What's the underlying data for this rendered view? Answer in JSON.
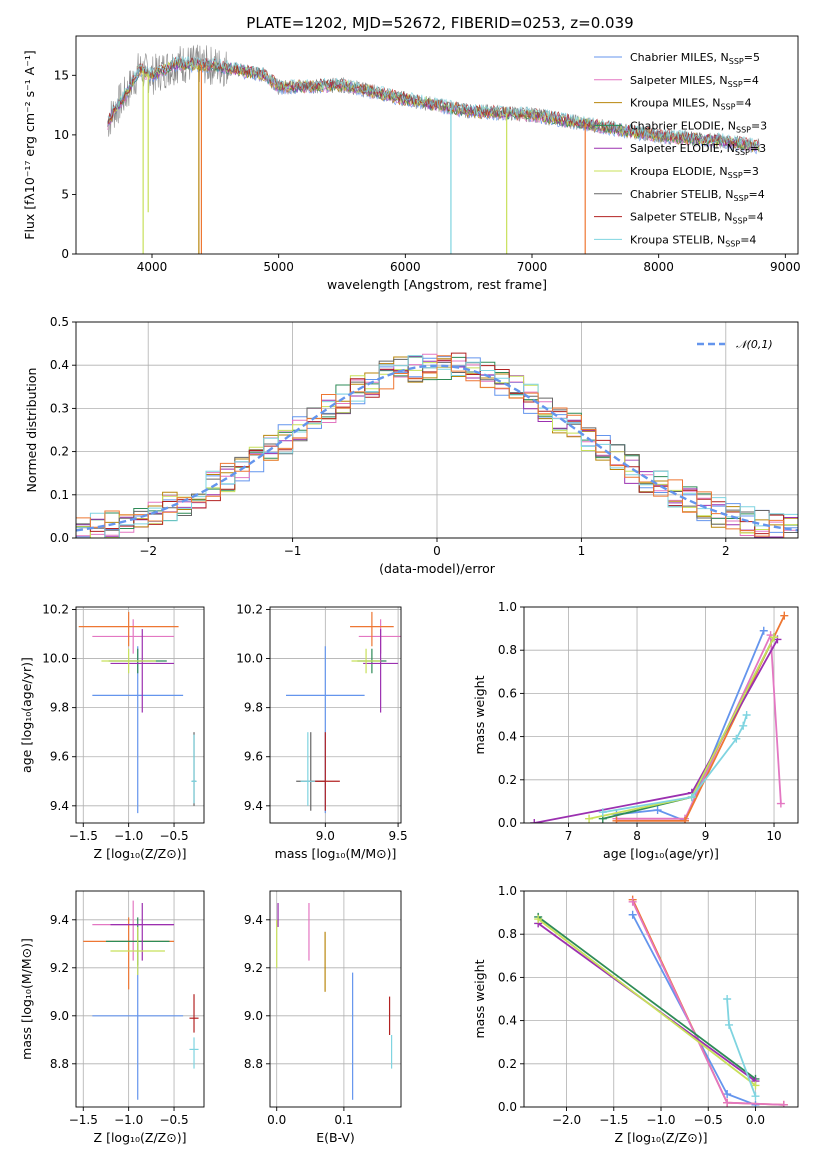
{
  "figure": {
    "title": "PLATE=1202, MJD=52672, FIBERID=0253, z=0.039"
  },
  "colors": {
    "blue": "#6495ed",
    "pink": "#e377c2",
    "brown": "#b8860b",
    "green": "#2e8b57",
    "purple": "#9b30b0",
    "yellowgreen": "#c8e05a",
    "gray": "#666666",
    "red": "#b22222",
    "cyan": "#7fd4e0",
    "orange": "#ee7733",
    "olive": "#8fb82a"
  },
  "chart_data": [
    {
      "id": "spectrum",
      "type": "line",
      "title": "PLATE=1202, MJD=52672, FIBERID=0253, z=0.039",
      "xlabel": "wavelength [Angstrom, rest frame]",
      "ylabel": "Flux [fλ10⁻¹⁷ erg cm⁻² s⁻¹ A⁻¹]",
      "xlim": [
        3400,
        9100
      ],
      "ylim": [
        0,
        18.3
      ],
      "xticks": [
        4000,
        5000,
        6000,
        7000,
        8000,
        9000
      ],
      "yticks": [
        0,
        5,
        10,
        15
      ],
      "legend_position": "top-right",
      "legend": [
        {
          "name": "Chabrier MILES, N",
          "sub": "SSP",
          "tail": "=5",
          "color": "blue"
        },
        {
          "name": "Salpeter MILES, N",
          "sub": "SSP",
          "tail": "=4",
          "color": "pink"
        },
        {
          "name": "Kroupa MILES, N",
          "sub": "SSP",
          "tail": "=4",
          "color": "brown"
        },
        {
          "name": "Chabrier ELODIE, N",
          "sub": "SSP",
          "tail": "=3",
          "color": "green"
        },
        {
          "name": "Salpeter ELODIE, N",
          "sub": "SSP",
          "tail": "=3",
          "color": "purple"
        },
        {
          "name": "Kroupa ELODIE, N",
          "sub": "SSP",
          "tail": "=3",
          "color": "yellowgreen"
        },
        {
          "name": "Chabrier STELIB, N",
          "sub": "SSP",
          "tail": "=4",
          "color": "gray"
        },
        {
          "name": "Salpeter STELIB, N",
          "sub": "SSP",
          "tail": "=4",
          "color": "red"
        },
        {
          "name": "Kroupa STELIB, N",
          "sub": "SSP",
          "tail": "=4",
          "color": "cyan"
        }
      ],
      "continuum": [
        [
          3650,
          11.0
        ],
        [
          3700,
          12.0
        ],
        [
          3800,
          13.5
        ],
        [
          3900,
          15.5
        ],
        [
          4000,
          15.0
        ],
        [
          4200,
          16.0
        ],
        [
          4500,
          15.8
        ],
        [
          4900,
          15.0
        ],
        [
          5000,
          14.0
        ],
        [
          5500,
          14.2
        ],
        [
          6000,
          13.0
        ],
        [
          6500,
          12.0
        ],
        [
          7000,
          11.7
        ],
        [
          7500,
          10.8
        ],
        [
          8000,
          9.9
        ],
        [
          8500,
          9.5
        ],
        [
          8800,
          9.0
        ]
      ],
      "dips": [
        {
          "x": 3930,
          "y": 0.0,
          "color": "yellowgreen"
        },
        {
          "x": 3970,
          "y": 3.5,
          "color": "yellowgreen"
        },
        {
          "x": 4370,
          "y": 0.0,
          "color": "brown"
        },
        {
          "x": 4390,
          "y": 0.0,
          "color": "orange"
        },
        {
          "x": 6360,
          "y": 0.0,
          "color": "cyan"
        },
        {
          "x": 6800,
          "y": 0.0,
          "color": "yellowgreen"
        },
        {
          "x": 7420,
          "y": 0.0,
          "color": "orange"
        }
      ]
    },
    {
      "id": "residuals",
      "type": "line",
      "xlabel": "(data-model)/error",
      "ylabel": "Normed distribution",
      "xlim": [
        -2.5,
        2.5
      ],
      "ylim": [
        0,
        0.5
      ],
      "xticks": [
        -2,
        -1,
        0,
        1,
        2
      ],
      "yticks": [
        0.0,
        0.1,
        0.2,
        0.3,
        0.4,
        0.5
      ],
      "legend": [
        {
          "name": "𝒩(0,1)",
          "color": "blue",
          "style": "dashed"
        }
      ],
      "bin_width": 0.1
    },
    {
      "id": "age_vs_Z",
      "type": "scatter",
      "xlabel": "Z [log₁₀(Z/Z⊙)]",
      "ylabel": "age  [log₁₀(age/yr)]",
      "xlim": [
        -1.58,
        -0.17
      ],
      "ylim": [
        9.33,
        10.21
      ],
      "xticks": [
        -1.5,
        -1.0,
        -0.5
      ],
      "yticks": [
        9.4,
        9.6,
        9.8,
        10.0,
        10.2
      ],
      "points": [
        {
          "x": -0.9,
          "y": 9.85,
          "xerr": 0.5,
          "yerr_lo": 0.48,
          "yerr_hi": 0.2,
          "color": "blue"
        },
        {
          "x": -0.95,
          "y": 10.09,
          "xerr": 0.45,
          "yerr_lo": 0.07,
          "yerr_hi": 0.07,
          "color": "pink"
        },
        {
          "x": -1.0,
          "y": 10.13,
          "xerr": 0.55,
          "yerr_lo": 0.08,
          "yerr_hi": 0.06,
          "color": "orange"
        },
        {
          "x": -0.9,
          "y": 9.99,
          "xerr": 0.32,
          "yerr_lo": 0.05,
          "yerr_hi": 0.05,
          "color": "green"
        },
        {
          "x": -0.85,
          "y": 9.98,
          "xerr": 0.35,
          "yerr_lo": 0.2,
          "yerr_hi": 0.14,
          "color": "purple"
        },
        {
          "x": -1.0,
          "y": 9.99,
          "xerr": 0.3,
          "yerr_lo": 0.05,
          "yerr_hi": 0.05,
          "color": "yellowgreen"
        },
        {
          "x": -0.28,
          "y": 9.5,
          "xerr": 0.02,
          "yerr_lo": 0.1,
          "yerr_hi": 0.2,
          "color": "gray"
        },
        {
          "x": -0.28,
          "y": 9.5,
          "xerr": 0.03,
          "yerr_lo": 0.09,
          "yerr_hi": 0.19,
          "color": "cyan"
        }
      ]
    },
    {
      "id": "age_vs_mass",
      "type": "scatter",
      "xlabel": "mass [log₁₀(M/M⊙)]",
      "ylabel": "",
      "xlim": [
        8.62,
        9.52
      ],
      "ylim": [
        9.33,
        10.21
      ],
      "xticks": [
        9.0,
        9.5
      ],
      "yticks": [
        9.4,
        9.6,
        9.8,
        10.0,
        10.2
      ],
      "points": [
        {
          "x": 9.0,
          "y": 9.85,
          "xerr": 0.27,
          "yerr_lo": 0.48,
          "yerr_hi": 0.2,
          "color": "blue"
        },
        {
          "x": 9.38,
          "y": 10.09,
          "xerr": 0.15,
          "yerr_lo": 0.07,
          "yerr_hi": 0.07,
          "color": "pink"
        },
        {
          "x": 9.32,
          "y": 10.13,
          "xerr": 0.15,
          "yerr_lo": 0.08,
          "yerr_hi": 0.06,
          "color": "orange"
        },
        {
          "x": 9.32,
          "y": 9.99,
          "xerr": 0.1,
          "yerr_lo": 0.05,
          "yerr_hi": 0.05,
          "color": "green"
        },
        {
          "x": 9.38,
          "y": 9.98,
          "xerr": 0.12,
          "yerr_lo": 0.2,
          "yerr_hi": 0.14,
          "color": "purple"
        },
        {
          "x": 9.28,
          "y": 9.99,
          "xerr": 0.1,
          "yerr_lo": 0.05,
          "yerr_hi": 0.05,
          "color": "yellowgreen"
        },
        {
          "x": 8.9,
          "y": 9.5,
          "xerr": 0.1,
          "yerr_lo": 0.12,
          "yerr_hi": 0.2,
          "color": "gray"
        },
        {
          "x": 9.0,
          "y": 9.5,
          "xerr": 0.1,
          "yerr_lo": 0.12,
          "yerr_hi": 0.2,
          "color": "red"
        },
        {
          "x": 8.88,
          "y": 9.5,
          "xerr": 0.05,
          "yerr_lo": 0.1,
          "yerr_hi": 0.2,
          "color": "cyan"
        }
      ]
    },
    {
      "id": "mass_weight_vs_age",
      "type": "line",
      "xlabel": "age  [log₁₀(age/yr)]",
      "ylabel": "mass weight",
      "xlim": [
        6.35,
        10.35
      ],
      "ylim": [
        0,
        1.0
      ],
      "xticks": [
        7,
        8,
        9,
        10
      ],
      "yticks": [
        0.0,
        0.2,
        0.4,
        0.6,
        0.8,
        1.0
      ],
      "series": [
        {
          "color": "blue",
          "x": [
            7.7,
            8.3,
            8.7,
            9.85
          ],
          "y": [
            0.04,
            0.06,
            0.01,
            0.89
          ]
        },
        {
          "color": "pink",
          "x": [
            7.7,
            8.7,
            9.95,
            10.1
          ],
          "y": [
            0.02,
            0.02,
            0.87,
            0.09
          ]
        },
        {
          "color": "orange",
          "x": [
            7.7,
            8.7,
            10.15
          ],
          "y": [
            0.01,
            0.01,
            0.96
          ]
        },
        {
          "color": "purple",
          "x": [
            6.5,
            8.8,
            10.05
          ],
          "y": [
            0.0,
            0.14,
            0.85
          ]
        },
        {
          "color": "green",
          "x": [
            7.5,
            8.8,
            10.0
          ],
          "y": [
            0.02,
            0.12,
            0.86
          ]
        },
        {
          "color": "yellowgreen",
          "x": [
            7.3,
            8.8,
            10.0
          ],
          "y": [
            0.02,
            0.12,
            0.86
          ]
        },
        {
          "color": "cyan",
          "x": [
            7.5,
            8.8,
            9.45,
            9.55,
            9.6
          ],
          "y": [
            0.05,
            0.12,
            0.39,
            0.45,
            0.5
          ]
        }
      ]
    },
    {
      "id": "mass_vs_Z",
      "type": "scatter",
      "xlabel": "Z [log₁₀(Z/Z⊙)]",
      "ylabel": "mass [log₁₀(M/M⊙)]",
      "xlim": [
        -1.58,
        -0.17
      ],
      "ylim": [
        8.62,
        9.52
      ],
      "xticks": [
        -1.5,
        -1.0,
        -0.5
      ],
      "yticks": [
        8.8,
        9.0,
        9.2,
        9.4
      ],
      "points": [
        {
          "x": -0.9,
          "y": 9.0,
          "xerr": 0.5,
          "yerr_lo": 0.35,
          "yerr_hi": 0.3,
          "color": "blue"
        },
        {
          "x": -0.95,
          "y": 9.38,
          "xerr": 0.45,
          "yerr_lo": 0.15,
          "yerr_hi": 0.1,
          "color": "pink"
        },
        {
          "x": -1.0,
          "y": 9.31,
          "xerr": 0.5,
          "yerr_lo": 0.2,
          "yerr_hi": 0.1,
          "color": "orange"
        },
        {
          "x": -0.9,
          "y": 9.31,
          "xerr": 0.35,
          "yerr_lo": 0.1,
          "yerr_hi": 0.1,
          "color": "green"
        },
        {
          "x": -0.85,
          "y": 9.38,
          "xerr": 0.35,
          "yerr_lo": 0.15,
          "yerr_hi": 0.09,
          "color": "purple"
        },
        {
          "x": -0.9,
          "y": 9.27,
          "xerr": 0.3,
          "yerr_lo": 0.1,
          "yerr_hi": 0.1,
          "color": "yellowgreen"
        },
        {
          "x": -0.28,
          "y": 8.99,
          "xerr": 0.05,
          "yerr_lo": 0.06,
          "yerr_hi": 0.1,
          "color": "red"
        },
        {
          "x": -0.28,
          "y": 8.86,
          "xerr": 0.05,
          "yerr_lo": 0.08,
          "yerr_hi": 0.05,
          "color": "cyan"
        }
      ]
    },
    {
      "id": "mass_vs_EBV",
      "type": "scatter",
      "xlabel": "E(B-V)",
      "ylabel": "",
      "xlim": [
        -0.01,
        0.185
      ],
      "ylim": [
        8.62,
        9.52
      ],
      "xticks": [
        0.0,
        0.1
      ],
      "yticks": [
        8.8,
        9.0,
        9.2,
        9.4
      ],
      "points": [
        {
          "x": 0.002,
          "y": 9.42,
          "yerr_lo": 0.05,
          "yerr_hi": 0.05,
          "color": "purple"
        },
        {
          "x": 0.0,
          "y": 9.3,
          "yerr_lo": 0.1,
          "yerr_hi": 0.1,
          "color": "yellowgreen"
        },
        {
          "x": 0.048,
          "y": 9.35,
          "yerr_lo": 0.12,
          "yerr_hi": 0.12,
          "color": "pink"
        },
        {
          "x": 0.072,
          "y": 9.25,
          "yerr_lo": 0.15,
          "yerr_hi": 0.1,
          "color": "brown"
        },
        {
          "x": 0.113,
          "y": 8.92,
          "yerr_lo": 0.27,
          "yerr_hi": 0.26,
          "color": "blue"
        },
        {
          "x": 0.168,
          "y": 9.0,
          "yerr_lo": 0.08,
          "yerr_hi": 0.08,
          "color": "red"
        },
        {
          "x": 0.171,
          "y": 8.86,
          "yerr_lo": 0.08,
          "yerr_hi": 0.06,
          "color": "cyan"
        }
      ]
    },
    {
      "id": "mass_weight_vs_Z",
      "type": "line",
      "xlabel": "Z [log₁₀(Z/Z⊙)]",
      "ylabel": "mass weight",
      "xlim": [
        -2.45,
        0.45
      ],
      "ylim": [
        0,
        1.0
      ],
      "xticks": [
        -2.0,
        -1.5,
        -1.0,
        -0.5,
        0.0
      ],
      "yticks": [
        0.0,
        0.2,
        0.4,
        0.6,
        0.8,
        1.0
      ],
      "series": [
        {
          "color": "blue",
          "x": [
            -1.3,
            -0.3,
            0.0
          ],
          "y": [
            0.89,
            0.06,
            0.01
          ]
        },
        {
          "color": "orange",
          "x": [
            -1.3,
            -0.3,
            0.3
          ],
          "y": [
            0.96,
            0.02,
            0.01
          ]
        },
        {
          "color": "pink",
          "x": [
            -1.3,
            -0.3,
            0.3
          ],
          "y": [
            0.95,
            0.02,
            0.01
          ]
        },
        {
          "color": "green",
          "x": [
            -2.3,
            0.0
          ],
          "y": [
            0.88,
            0.13
          ]
        },
        {
          "color": "purple",
          "x": [
            -2.3,
            0.0
          ],
          "y": [
            0.85,
            0.12
          ]
        },
        {
          "color": "yellowgreen",
          "x": [
            -2.3,
            0.0
          ],
          "y": [
            0.87,
            0.1
          ]
        },
        {
          "color": "cyan",
          "x": [
            -0.3,
            -0.28,
            0.0
          ],
          "y": [
            0.5,
            0.38,
            0.05
          ]
        }
      ]
    }
  ]
}
